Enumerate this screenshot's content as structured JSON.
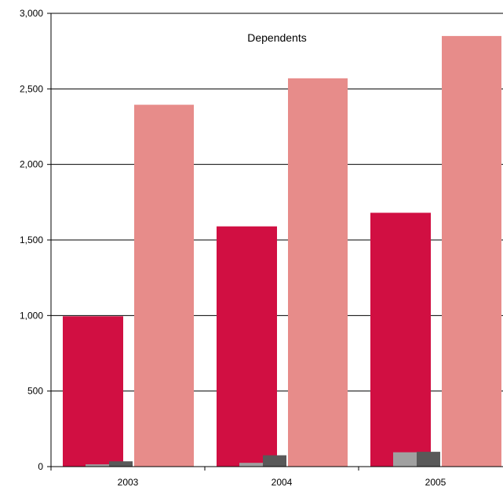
{
  "chart_data": {
    "type": "bar",
    "title": "Dependents",
    "xlabel": "",
    "ylabel": "",
    "categories": [
      "2003",
      "2004",
      "2005"
    ],
    "ylim": [
      0,
      3000
    ],
    "yticks": [
      0,
      500,
      1000,
      1500,
      2000,
      2500,
      3000
    ],
    "ytick_labels": [
      "0",
      "500",
      "1,000",
      "1,500",
      "2,000",
      "2,500",
      "3,000"
    ],
    "grid": true,
    "legend": "none",
    "series": [
      {
        "values": [
          995,
          1590,
          1680
        ],
        "color": "#d10f42"
      },
      {
        "values": [
          15,
          25,
          95
        ],
        "color": "#a0a0a0"
      },
      {
        "values": [
          35,
          75,
          98
        ],
        "color": "#595959"
      },
      {
        "values": [
          2395,
          2570,
          2850
        ],
        "color": "#e78c8a"
      }
    ]
  }
}
